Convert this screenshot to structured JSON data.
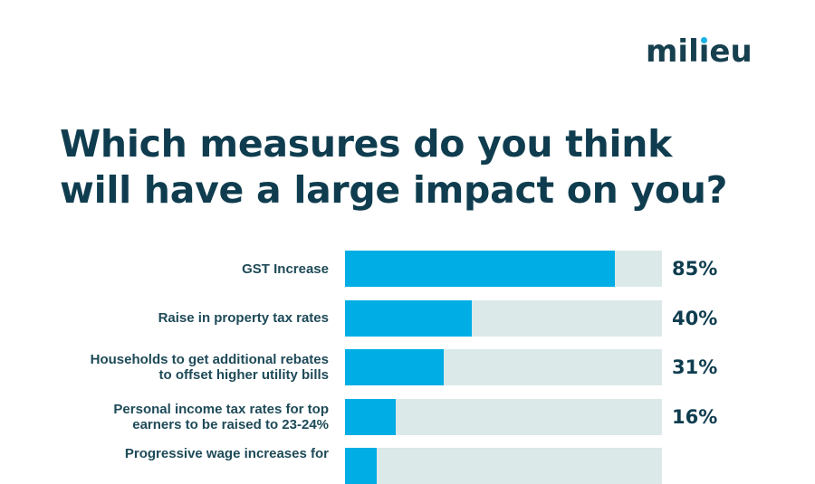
{
  "brand": {
    "logo_text_pre": "mil",
    "logo_text_i": "ı",
    "logo_text_post": "eu",
    "accent_color": "#00ade4"
  },
  "chart_data": {
    "type": "bar",
    "orientation": "horizontal",
    "title": "Which measures do you think will have a large impact on you?",
    "title_lines": [
      "Which measures do you think",
      "will have a large impact on you?"
    ],
    "xlabel": "",
    "ylabel": "",
    "xlim": [
      0,
      100
    ],
    "grid": false,
    "unit": "%",
    "categories": [
      "GST Increase",
      "Raise in property tax rates",
      "Households to get additional rebates to offset higher utility bills",
      "Personal income tax rates for top earners to be raised to 23-24%",
      "Progressive wage increases for"
    ],
    "values": [
      85,
      40,
      31,
      16,
      10
    ],
    "value_labels": [
      "85%",
      "40%",
      "31%",
      "16%",
      ""
    ],
    "colors": {
      "fill": "#00ade4",
      "track": "#dbe9e8",
      "text": "#0f3d4f"
    }
  }
}
